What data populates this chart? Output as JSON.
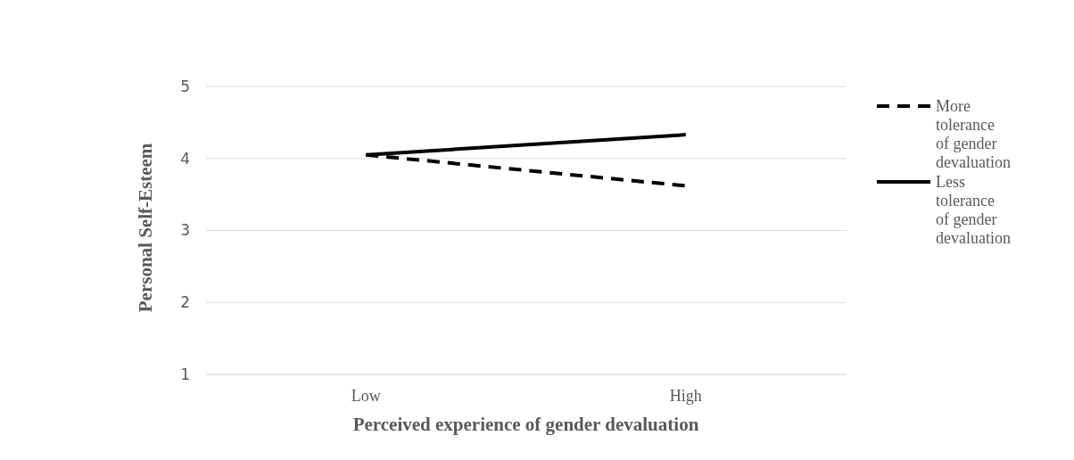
{
  "chart_data": {
    "type": "line",
    "xlabel": "Perceived experience of gender devaluation",
    "ylabel": "Personal Self-Esteem",
    "categories": [
      "Low",
      "High"
    ],
    "series": [
      {
        "name": "More tolerance of gender devaluation",
        "color": "#000000",
        "values": [
          4.05,
          3.62
        ],
        "line_style": "dashed"
      },
      {
        "name": "Less tolerance of gender devaluation",
        "color": "#000000",
        "values": [
          4.05,
          4.33
        ],
        "line_style": "solid"
      }
    ],
    "ylim": [
      1,
      5
    ],
    "yticks": [
      1,
      2,
      3,
      4,
      5
    ],
    "grid": "y",
    "legend": "right",
    "marker": "none"
  }
}
